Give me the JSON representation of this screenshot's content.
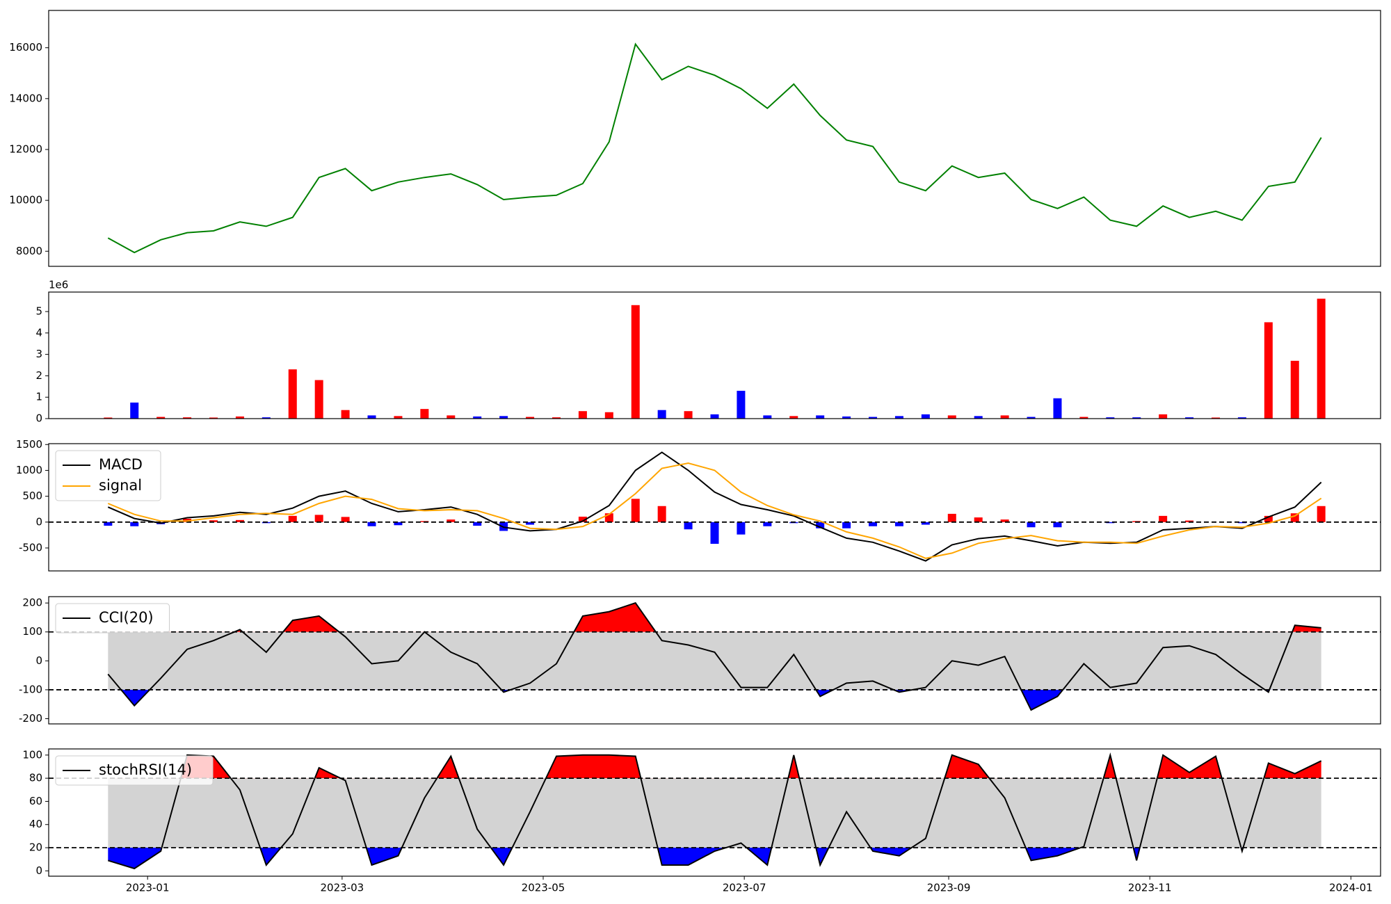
{
  "chart_data": [
    {
      "type": "line",
      "color": "green",
      "x": [
        19346,
        19354,
        19362,
        19370,
        19378,
        19386,
        19394,
        19402,
        19410,
        19418,
        19426,
        19434,
        19442,
        19450,
        19458,
        19466,
        19474,
        19482,
        19490,
        19498,
        19506,
        19514,
        19522,
        19530,
        19538,
        19546,
        19554,
        19562,
        19570,
        19578,
        19586,
        19594,
        19602,
        19610,
        19618,
        19626,
        19634,
        19642,
        19650,
        19658,
        19666,
        19674,
        19682,
        19690,
        19698,
        19706,
        19714
      ],
      "values": [
        8520,
        7950,
        8450,
        8730,
        8800,
        9150,
        8980,
        9330,
        10900,
        11250,
        10380,
        10720,
        10900,
        11040,
        10620,
        10030,
        10130,
        10200,
        10660,
        12300,
        16140,
        14740,
        15270,
        14920,
        14390,
        13620,
        14570,
        13340,
        12370,
        12120,
        10720,
        10380,
        11350,
        10900,
        11070,
        10030,
        9680,
        10130,
        9220,
        8980,
        9780,
        9330,
        9570,
        9220,
        10550,
        10720,
        12470
      ],
      "xlim": [
        19328,
        19732
      ],
      "ylim": [
        7406,
        17467
      ],
      "yticks": [
        8000,
        10000,
        12000,
        14000,
        16000
      ]
    },
    {
      "type": "bar",
      "offset_label": "1e6",
      "x": [
        19346,
        19354,
        19362,
        19370,
        19378,
        19386,
        19394,
        19402,
        19410,
        19418,
        19426,
        19434,
        19442,
        19450,
        19458,
        19466,
        19474,
        19482,
        19490,
        19498,
        19506,
        19514,
        19522,
        19530,
        19538,
        19546,
        19554,
        19562,
        19570,
        19578,
        19586,
        19594,
        19602,
        19610,
        19618,
        19626,
        19634,
        19642,
        19650,
        19658,
        19666,
        19674,
        19682,
        19690,
        19698,
        19706,
        19714
      ],
      "values": [
        50000,
        750000,
        80000,
        60000,
        50000,
        100000,
        60000,
        2300000,
        1800000,
        400000,
        150000,
        120000,
        450000,
        150000,
        100000,
        120000,
        80000,
        60000,
        350000,
        300000,
        5300000,
        400000,
        350000,
        200000,
        1300000,
        150000,
        120000,
        150000,
        100000,
        80000,
        120000,
        200000,
        150000,
        120000,
        150000,
        80000,
        950000,
        80000,
        60000,
        60000,
        200000,
        60000,
        50000,
        60000,
        4500000,
        2700000,
        5600000
      ],
      "colors": [
        "red",
        "blue",
        "red",
        "red",
        "red",
        "red",
        "blue",
        "red",
        "red",
        "red",
        "blue",
        "red",
        "red",
        "red",
        "blue",
        "blue",
        "red",
        "red",
        "red",
        "red",
        "red",
        "blue",
        "red",
        "blue",
        "blue",
        "blue",
        "red",
        "blue",
        "blue",
        "blue",
        "blue",
        "blue",
        "red",
        "blue",
        "red",
        "blue",
        "blue",
        "red",
        "blue",
        "blue",
        "red",
        "blue",
        "red",
        "blue",
        "red",
        "red",
        "red"
      ],
      "xlim": [
        19328,
        19732
      ],
      "ylim": [
        0,
        5910000
      ],
      "yticks": [
        0,
        {
          "value": 1000000,
          "label": "1"
        },
        {
          "value": 2000000,
          "label": "2"
        },
        {
          "value": 3000000,
          "label": "3"
        },
        {
          "value": 4000000,
          "label": "4"
        },
        {
          "value": 5000000,
          "label": "5"
        }
      ]
    },
    {
      "type": "macd",
      "legend": "upper left",
      "x": [
        19346,
        19354,
        19362,
        19370,
        19378,
        19386,
        19394,
        19402,
        19410,
        19418,
        19426,
        19434,
        19442,
        19450,
        19458,
        19466,
        19474,
        19482,
        19490,
        19498,
        19506,
        19514,
        19522,
        19530,
        19538,
        19546,
        19554,
        19562,
        19570,
        19578,
        19586,
        19594,
        19602,
        19610,
        19618,
        19626,
        19634,
        19642,
        19650,
        19658,
        19666,
        19674,
        19682,
        19690,
        19698,
        19706,
        19714
      ],
      "series": [
        {
          "name": "MACD",
          "color": "black",
          "values": [
            290,
            70,
            -20,
            85,
            120,
            190,
            150,
            270,
            500,
            600,
            360,
            200,
            240,
            290,
            150,
            -100,
            -170,
            -140,
            20,
            320,
            1000,
            1350,
            1000,
            580,
            340,
            240,
            120,
            -100,
            -310,
            -390,
            -560,
            -750,
            -440,
            -320,
            -270,
            -360,
            -460,
            -390,
            -410,
            -390,
            -150,
            -120,
            -85,
            -120,
            100,
            290,
            770
          ]
        },
        {
          "name": "signal",
          "color": "orange",
          "values": [
            360,
            150,
            20,
            20,
            85,
            150,
            170,
            150,
            360,
            500,
            440,
            260,
            220,
            240,
            220,
            70,
            -120,
            -140,
            -85,
            150,
            550,
            1040,
            1140,
            1000,
            580,
            320,
            140,
            20,
            -190,
            -310,
            -480,
            -700,
            -600,
            -410,
            -320,
            -260,
            -360,
            -390,
            -390,
            -410,
            -270,
            -150,
            -85,
            -100,
            -20,
            120,
            460
          ]
        }
      ],
      "histogram": {
        "up_color": "red",
        "down_color": "blue",
        "values": [
          -70,
          -80,
          -40,
          65,
          35,
          40,
          -20,
          120,
          140,
          100,
          -80,
          -60,
          20,
          50,
          -70,
          -170,
          -50,
          0,
          105,
          170,
          450,
          310,
          -140,
          -420,
          -240,
          -80,
          -20,
          -120,
          -120,
          -80,
          -80,
          -50,
          160,
          90,
          50,
          -100,
          -100,
          0,
          -20,
          20,
          120,
          30,
          0,
          -20,
          120,
          170,
          310
        ]
      },
      "hlines": [
        0
      ],
      "xlim": [
        19328,
        19732
      ],
      "ylim": [
        -944,
        1517
      ],
      "yticks": [
        -500,
        0,
        500,
        1000,
        1500
      ]
    },
    {
      "type": "oscillator",
      "legend": "upper left",
      "band_color": "lightgray",
      "upper_color": "red",
      "lower_color": "blue",
      "x": [
        19346,
        19354,
        19362,
        19370,
        19378,
        19386,
        19394,
        19402,
        19410,
        19418,
        19426,
        19434,
        19442,
        19450,
        19458,
        19466,
        19474,
        19482,
        19490,
        19498,
        19506,
        19514,
        19522,
        19530,
        19538,
        19546,
        19554,
        19562,
        19570,
        19578,
        19586,
        19594,
        19602,
        19610,
        19618,
        19626,
        19634,
        19642,
        19650,
        19658,
        19666,
        19674,
        19682,
        19690,
        19698,
        19706,
        19714
      ],
      "series": [
        {
          "name": "CCI(20)",
          "color": "black",
          "values": [
            -46,
            -155,
            -60,
            40,
            70,
            108,
            30,
            140,
            155,
            83,
            -10,
            0,
            100,
            30,
            -10,
            -108,
            -77,
            -10,
            155,
            170,
            200,
            70,
            55,
            30,
            -92,
            -92,
            22,
            -123,
            -77,
            -70,
            -108,
            -92,
            0,
            -15,
            15,
            -170,
            -123,
            -10,
            -92,
            -77,
            46,
            52,
            22,
            -46,
            -108,
            123,
            114
          ]
        }
      ],
      "bands": [
        -100,
        100
      ],
      "hlines": [
        100,
        -100
      ],
      "xlim": [
        19328,
        19732
      ],
      "ylim": [
        -218,
        222
      ],
      "yticks": [
        -200,
        -100,
        0,
        100,
        200
      ]
    },
    {
      "type": "oscillator",
      "legend": "upper left",
      "band_color": "lightgray",
      "upper_color": "red",
      "lower_color": "blue",
      "x": [
        19346,
        19354,
        19362,
        19370,
        19378,
        19386,
        19394,
        19402,
        19410,
        19418,
        19426,
        19434,
        19442,
        19450,
        19458,
        19466,
        19474,
        19482,
        19490,
        19498,
        19506,
        19514,
        19522,
        19530,
        19538,
        19546,
        19554,
        19562,
        19570,
        19578,
        19586,
        19594,
        19602,
        19610,
        19618,
        19626,
        19634,
        19642,
        19650,
        19658,
        19666,
        19674,
        19682,
        19690,
        19698,
        19706,
        19714
      ],
      "series": [
        {
          "name": "stochRSI(14)",
          "color": "black",
          "values": [
            9,
            2,
            17,
            100,
            99,
            70,
            5,
            32,
            89,
            78,
            5,
            13,
            63,
            99,
            36,
            5,
            51,
            99,
            100,
            100,
            99,
            5,
            5,
            17,
            24,
            5,
            100,
            5,
            51,
            17,
            13,
            28,
            100,
            92,
            63,
            9,
            13,
            21,
            100,
            9,
            100,
            85,
            99,
            17,
            93,
            84,
            95
          ]
        }
      ],
      "bands": [
        20,
        80
      ],
      "hlines": [
        80,
        20
      ],
      "xlim": [
        19328,
        19732
      ],
      "ylim": [
        -4.6,
        105.3
      ],
      "yticks": [
        0,
        20,
        40,
        60,
        80,
        100
      ],
      "xticks": [
        {
          "value": 19358,
          "label": "2023-01"
        },
        {
          "value": 19417,
          "label": "2023-03"
        },
        {
          "value": 19478,
          "label": "2023-05"
        },
        {
          "value": 19539,
          "label": "2023-07"
        },
        {
          "value": 19601,
          "label": "2023-09"
        },
        {
          "value": 19662,
          "label": "2023-11"
        },
        {
          "value": 19723,
          "label": "2024-01"
        }
      ]
    }
  ]
}
